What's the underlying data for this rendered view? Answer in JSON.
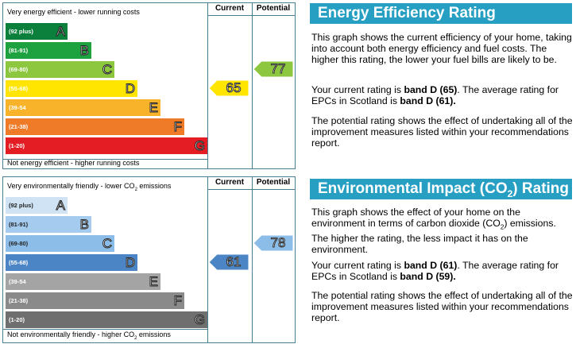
{
  "energy": {
    "top_label": "Very energy efficient - lower running costs",
    "bottom_label": "Not energy efficient - higher running costs",
    "current_header": "Current",
    "potential_header": "Potential",
    "current_value": "65",
    "potential_value": "77",
    "title": "Energy Efficiency Rating",
    "para1": "This graph shows the current efficiency of your home, taking into account both energy efficiency and fuel costs. The higher this rating, the lower your fuel bills are likely to be.",
    "para2_prefix": "Your current rating is ",
    "para2_band": "band D (65)",
    "para2_mid": ". The average rating for EPCs in Scotland is ",
    "para2_avg": "band D (61).",
    "para3": "The potential rating shows the effect of undertaking all of the improvement measures listed within your recommendations report.",
    "bands": [
      {
        "range": "(92 plus)",
        "letter": "A",
        "color": "#0b7f3c"
      },
      {
        "range": "(81-91)",
        "letter": "B",
        "color": "#1ea23f"
      },
      {
        "range": "(69-80)",
        "letter": "C",
        "color": "#8dc63f"
      },
      {
        "range": "(55-68)",
        "letter": "D",
        "color": "#ffe500"
      },
      {
        "range": "(39-54",
        "letter": "E",
        "color": "#f9b32b"
      },
      {
        "range": "(21-38)",
        "letter": "F",
        "color": "#ef7a28"
      },
      {
        "range": "(1-20)",
        "letter": "G",
        "color": "#e31d23"
      }
    ]
  },
  "environment": {
    "top_label_pre": "Very environmentally friendly - lower CO",
    "top_label_sub": "2",
    "top_label_post": " emissions",
    "bottom_label_pre": "Not environmentally friendly - higher CO",
    "bottom_label_sub": "2",
    "bottom_label_post": " emissions",
    "current_header": "Current",
    "potential_header": "Potential",
    "current_value": "61",
    "potential_value": "78",
    "title_pre": "Environmental Impact (CO",
    "title_sub": "2",
    "title_post": ") Rating",
    "para1_a": "This graph shows the effect of your home on the environment in terms of carbon dioxide (CO",
    "para1_sub": "2",
    "para1_b": ") emissions. The higher the rating, the less impact it has on the environment.",
    "para2_prefix": "Your current rating is ",
    "para2_band": "band D (61)",
    "para2_mid": ". The average rating for EPCs in Scotland is ",
    "para2_avg": "band D (59).",
    "para3": "The potential rating shows the effect of undertaking all of the improvement measures listed within your recommendations report.",
    "bands": [
      {
        "range": "(92 plus)",
        "letter": "A",
        "color": "#cfe3f5"
      },
      {
        "range": "(81-91)",
        "letter": "B",
        "color": "#a5cbee"
      },
      {
        "range": "(69-80)",
        "letter": "C",
        "color": "#8cbde9"
      },
      {
        "range": "(55-68)",
        "letter": "D",
        "color": "#4c85c6"
      },
      {
        "range": "(39-54",
        "letter": "E",
        "color": "#a4a4a4"
      },
      {
        "range": "(21-38)",
        "letter": "F",
        "color": "#8a8a8a"
      },
      {
        "range": "(1-20)",
        "letter": "G",
        "color": "#6f6f6f"
      }
    ]
  },
  "chart_data": [
    {
      "type": "bar",
      "title": "Energy Efficiency Rating",
      "categories": [
        "A",
        "B",
        "C",
        "D",
        "E",
        "F",
        "G"
      ],
      "ranges": [
        "(92 plus)",
        "(81-91)",
        "(69-80)",
        "(55-68)",
        "(39-54",
        "(21-38)",
        "(1-20)"
      ],
      "current": 65,
      "potential": 77,
      "current_band": "D",
      "potential_band": "C"
    },
    {
      "type": "bar",
      "title": "Environmental Impact (CO2) Rating",
      "categories": [
        "A",
        "B",
        "C",
        "D",
        "E",
        "F",
        "G"
      ],
      "ranges": [
        "(92 plus)",
        "(81-91)",
        "(69-80)",
        "(55-68)",
        "(39-54",
        "(21-38)",
        "(1-20)"
      ],
      "current": 61,
      "potential": 78,
      "current_band": "D",
      "potential_band": "C"
    }
  ]
}
